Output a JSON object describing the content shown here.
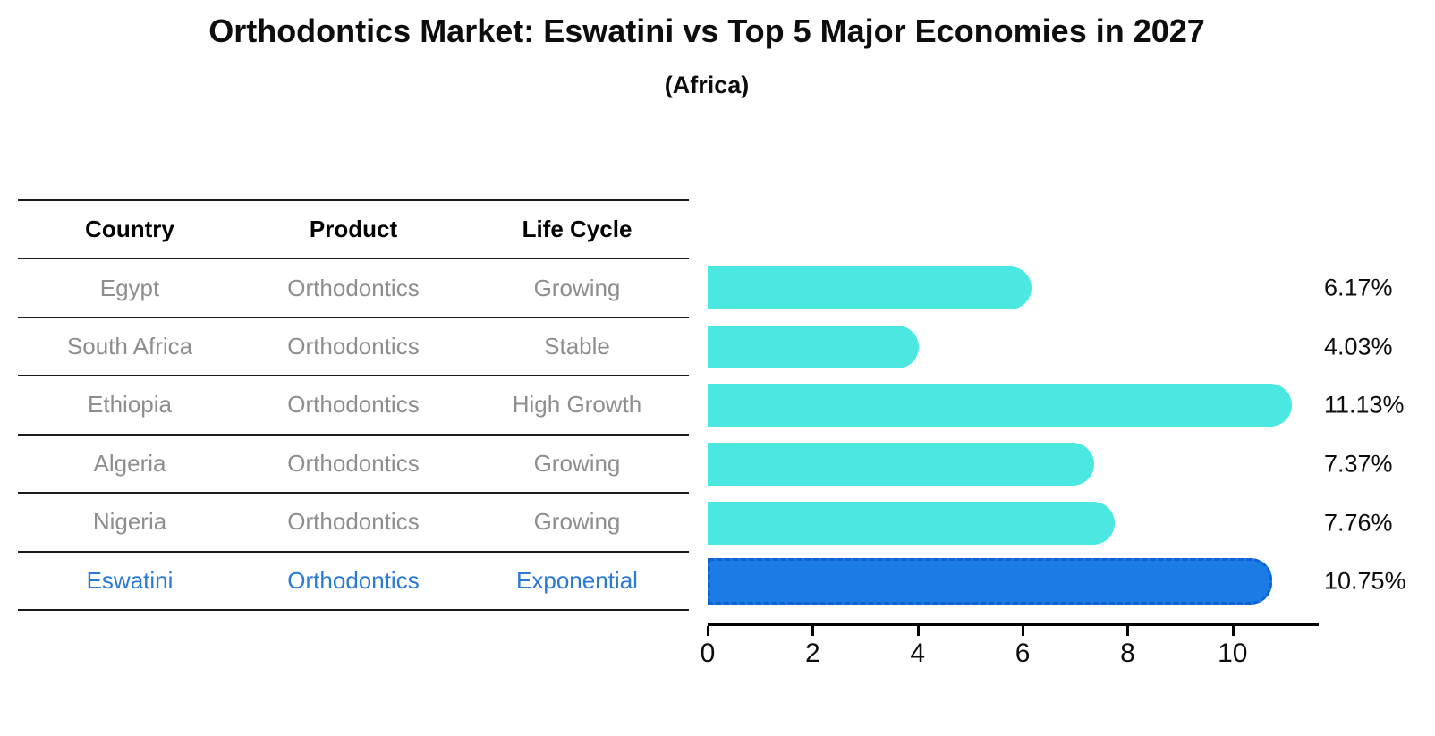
{
  "title": "Orthodontics Market: Eswatini vs Top 5 Major Economies in 2027",
  "subtitle": "(Africa)",
  "table": {
    "headers": [
      "Country",
      "Product",
      "Life Cycle"
    ],
    "rows": [
      {
        "country": "Egypt",
        "product": "Orthodontics",
        "life_cycle": "Growing",
        "highlight": false
      },
      {
        "country": "South Africa",
        "product": "Orthodontics",
        "life_cycle": "Stable",
        "highlight": false
      },
      {
        "country": "Ethiopia",
        "product": "Orthodontics",
        "life_cycle": "High Growth",
        "highlight": false
      },
      {
        "country": "Algeria",
        "product": "Orthodontics",
        "life_cycle": "Growing",
        "highlight": false
      },
      {
        "country": "Nigeria",
        "product": "Orthodontics",
        "life_cycle": "Growing",
        "highlight": false
      },
      {
        "country": "Eswatini",
        "product": "Orthodontics",
        "life_cycle": "Exponential",
        "highlight": true
      }
    ]
  },
  "chart_data": {
    "type": "bar",
    "orientation": "horizontal",
    "title": "Orthodontics Market: Eswatini vs Top 5 Major Economies in 2027",
    "subtitle": "(Africa)",
    "categories": [
      "Egypt",
      "South Africa",
      "Ethiopia",
      "Algeria",
      "Nigeria",
      "Eswatini"
    ],
    "values": [
      6.17,
      4.03,
      11.13,
      7.37,
      7.76,
      10.75
    ],
    "value_labels": [
      "6.17%",
      "4.03%",
      "11.13%",
      "7.37%",
      "7.76%",
      "10.75%"
    ],
    "highlight_index": 5,
    "xlim": [
      0,
      11.64
    ],
    "x_ticks": [
      0,
      2,
      4,
      6,
      8,
      10
    ],
    "grid": false,
    "legend": false,
    "bar_color": "#4AE8E1",
    "highlight_bar_color": "#1C7CE6",
    "highlight_border_color": "#0F62D0",
    "row_text_color": "#8e8e8e",
    "highlight_text_color": "#2879d8"
  }
}
